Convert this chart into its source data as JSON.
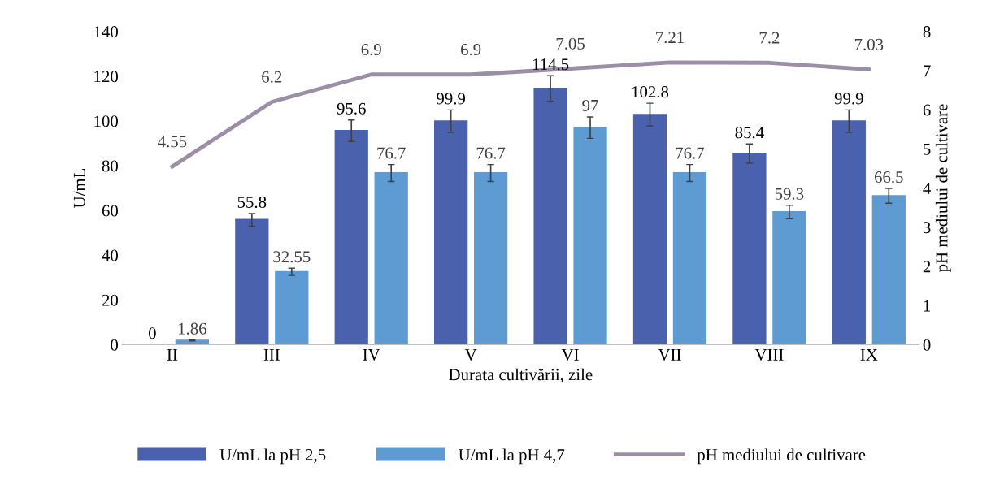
{
  "chart_data": {
    "type": "bar",
    "xlabel": "Durata cultivării, zile",
    "ylabel": "U/mL",
    "y2label": "pH mediului de cultivare",
    "categories": [
      "II",
      "III",
      "IV",
      "V",
      "VI",
      "VII",
      "VIII",
      "IX"
    ],
    "series": [
      {
        "name": "U/mL la pH 2,5",
        "color": "#4a62ae",
        "values": [
          0,
          55.8,
          95.6,
          99.9,
          114.5,
          102.8,
          85.4,
          99.9
        ],
        "errors": [
          null,
          2.8,
          4.8,
          5,
          5.7,
          5.1,
          4.3,
          5
        ]
      },
      {
        "name": "U/mL la pH 4,7",
        "color": "#5e9bd3",
        "values": [
          1.86,
          32.55,
          76.7,
          76.7,
          97,
          76.7,
          59.3,
          66.5
        ],
        "errors": [
          0.2,
          1.6,
          3.8,
          3.8,
          4.8,
          3.8,
          3,
          3.3
        ]
      },
      {
        "name": "pH mediului de cultivare",
        "type": "line",
        "axis": "y2",
        "color": "#9b8ea6",
        "values": [
          4.55,
          6.2,
          6.9,
          6.9,
          7.05,
          7.21,
          7.2,
          7.03
        ]
      }
    ],
    "ylim": [
      0,
      140
    ],
    "yticks": [
      0,
      20,
      40,
      60,
      80,
      100,
      120,
      140
    ],
    "y2lim": [
      0,
      8
    ],
    "y2ticks": [
      0,
      1,
      2,
      3,
      4,
      5,
      6,
      7,
      8
    ],
    "data_labels": true,
    "grid": false,
    "legend": "bottom",
    "marker": "none",
    "line_style": "solid"
  }
}
